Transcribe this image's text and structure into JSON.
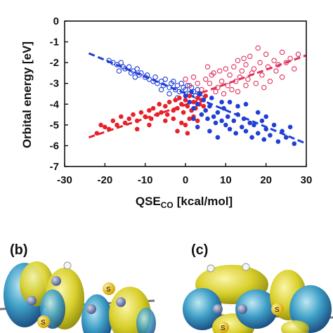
{
  "chart_data": {
    "type": "scatter",
    "xlabel": "QSE",
    "xlabel_sub": "CO",
    "xlabel_unit": "[kcal/mol]",
    "ylabel": "Orbital energy [eV]",
    "xlim": [
      -30,
      30
    ],
    "ylim": [
      -7,
      0
    ],
    "xticks": [
      -30,
      -20,
      -10,
      0,
      10,
      20,
      30
    ],
    "yticks": [
      0,
      -1,
      -2,
      -3,
      -4,
      -5,
      -6,
      -7
    ],
    "grid": false,
    "legend": "none",
    "series": [
      {
        "marker": "open-circle",
        "color": "#1f3fd6",
        "points": [
          [
            -19,
            -1.9
          ],
          [
            -18,
            -2.0
          ],
          [
            -17,
            -2.1
          ],
          [
            -16,
            -2.0
          ],
          [
            -15.5,
            -2.2
          ],
          [
            -15,
            -2.3
          ],
          [
            -14,
            -2.2
          ],
          [
            -13.5,
            -2.5
          ],
          [
            -13,
            -2.4
          ],
          [
            -12,
            -2.3
          ],
          [
            -11.5,
            -2.6
          ],
          [
            -11,
            -2.5
          ],
          [
            -10,
            -2.7
          ],
          [
            -9.5,
            -2.6
          ],
          [
            -9,
            -2.8
          ],
          [
            -8,
            -2.9
          ],
          [
            -7.5,
            -2.7
          ],
          [
            -7,
            -3.0
          ],
          [
            -6,
            -2.9
          ],
          [
            -5.5,
            -3.1
          ],
          [
            -5,
            -2.8
          ],
          [
            -4,
            -3.2
          ],
          [
            -3.5,
            -3.0
          ],
          [
            -3,
            -2.9
          ],
          [
            -2.5,
            -3.3
          ],
          [
            -2,
            -3.1
          ],
          [
            -1.5,
            -3.4
          ],
          [
            -1,
            -3.0
          ],
          [
            -0.5,
            -3.2
          ],
          [
            0,
            -3.3
          ],
          [
            0.5,
            -3.1
          ],
          [
            1,
            -3.5
          ],
          [
            1.5,
            -3.2
          ],
          [
            2,
            -3.4
          ],
          [
            2.5,
            -3.6
          ],
          [
            3,
            -3.3
          ],
          [
            3.5,
            -3.5
          ],
          [
            4,
            -3.7
          ],
          [
            -2,
            -3.7
          ],
          [
            -4,
            -3.5
          ],
          [
            -6,
            -3.3
          ],
          [
            -16.5,
            -2.4
          ],
          [
            -12.5,
            -2.7
          ]
        ],
        "trend": [
          [
            -24,
            -1.55
          ],
          [
            30,
            -5.9
          ]
        ]
      },
      {
        "marker": "open-circle",
        "color": "#e0305a",
        "points": [
          [
            4,
            -3.3
          ],
          [
            5,
            -2.8
          ],
          [
            6,
            -3.0
          ],
          [
            7,
            -2.5
          ],
          [
            8,
            -3.2
          ],
          [
            8.5,
            -2.4
          ],
          [
            9,
            -2.9
          ],
          [
            10,
            -2.3
          ],
          [
            10.5,
            -3.1
          ],
          [
            11,
            -2.6
          ],
          [
            12,
            -2.2
          ],
          [
            12.5,
            -2.9
          ],
          [
            13,
            -1.9
          ],
          [
            13.5,
            -2.7
          ],
          [
            14,
            -2.4
          ],
          [
            14.5,
            -1.8
          ],
          [
            15,
            -2.1
          ],
          [
            15.5,
            -2.8
          ],
          [
            16,
            -1.7
          ],
          [
            16.5,
            -2.5
          ],
          [
            17,
            -2.3
          ],
          [
            17.5,
            -3.0
          ],
          [
            18,
            -1.3
          ],
          [
            18.5,
            -2.0
          ],
          [
            19,
            -2.6
          ],
          [
            20,
            -1.6
          ],
          [
            20.5,
            -2.2
          ],
          [
            21,
            -2.9
          ],
          [
            22,
            -1.9
          ],
          [
            22.5,
            -2.4
          ],
          [
            23,
            -2.1
          ],
          [
            24,
            -1.5
          ],
          [
            25,
            -2.0
          ],
          [
            26,
            -1.8
          ],
          [
            27,
            -2.3
          ],
          [
            28,
            -1.6
          ],
          [
            6.5,
            -2.6
          ],
          [
            7.5,
            -3.4
          ],
          [
            9.5,
            -3.5
          ],
          [
            11.5,
            -3.3
          ],
          [
            3,
            -3.0
          ],
          [
            2,
            -2.7
          ],
          [
            1,
            -3.1
          ],
          [
            0,
            -2.8
          ],
          [
            5.5,
            -2.2
          ],
          [
            13,
            -3.4
          ],
          [
            15,
            -3.1
          ],
          [
            19.5,
            -3.2
          ],
          [
            24,
            -2.7
          ]
        ],
        "trend": [
          [
            4,
            -3.45
          ],
          [
            30,
            -1.65
          ]
        ]
      },
      {
        "marker": "filled-circle",
        "color": "#e8202a",
        "points": [
          [
            -22,
            -5.4
          ],
          [
            -21,
            -5.0
          ],
          [
            -20,
            -5.1
          ],
          [
            -19,
            -5.2
          ],
          [
            -18,
            -4.8
          ],
          [
            -17,
            -5.0
          ],
          [
            -16,
            -4.6
          ],
          [
            -15,
            -4.9
          ],
          [
            -14,
            -4.7
          ],
          [
            -13,
            -4.5
          ],
          [
            -12,
            -4.8
          ],
          [
            -11,
            -4.4
          ],
          [
            -10,
            -4.6
          ],
          [
            -9,
            -4.3
          ],
          [
            -8.5,
            -4.7
          ],
          [
            -8,
            -4.2
          ],
          [
            -7,
            -4.5
          ],
          [
            -6.5,
            -4.0
          ],
          [
            -6,
            -4.4
          ],
          [
            -5,
            -4.1
          ],
          [
            -4.5,
            -4.5
          ],
          [
            -4,
            -3.9
          ],
          [
            -3,
            -4.3
          ],
          [
            -2.5,
            -3.8
          ],
          [
            -2,
            -4.2
          ],
          [
            -1.5,
            -3.7
          ],
          [
            -1,
            -4.0
          ],
          [
            -0.5,
            -4.4
          ],
          [
            0,
            -3.8
          ],
          [
            0.5,
            -4.1
          ],
          [
            1,
            -3.6
          ],
          [
            1.5,
            -4.3
          ],
          [
            2,
            -3.9
          ],
          [
            2.5,
            -4.2
          ],
          [
            3,
            -3.7
          ],
          [
            3.5,
            -4.0
          ],
          [
            4,
            -3.8
          ],
          [
            4.5,
            -4.1
          ],
          [
            5,
            -3.6
          ],
          [
            0,
            -5.0
          ],
          [
            -1,
            -4.9
          ],
          [
            1,
            -4.7
          ],
          [
            2,
            -4.6
          ],
          [
            3,
            -4.8
          ],
          [
            -3,
            -4.7
          ],
          [
            -5,
            -4.8
          ],
          [
            -9,
            -5.0
          ],
          [
            -12,
            -5.2
          ],
          [
            0.5,
            -5.4
          ],
          [
            -2,
            -5.3
          ]
        ],
        "trend": [
          [
            -24,
            -5.6
          ],
          [
            5,
            -3.7
          ]
        ]
      },
      {
        "marker": "filled-circle",
        "color": "#1f3fd6",
        "points": [
          [
            0,
            -3.6
          ],
          [
            1,
            -3.9
          ],
          [
            2,
            -4.2
          ],
          [
            3,
            -4.0
          ],
          [
            4,
            -4.5
          ],
          [
            4.5,
            -3.8
          ],
          [
            5,
            -4.3
          ],
          [
            5.5,
            -4.7
          ],
          [
            6,
            -4.1
          ],
          [
            7,
            -4.6
          ],
          [
            7.5,
            -4.9
          ],
          [
            8,
            -4.4
          ],
          [
            9,
            -4.8
          ],
          [
            9.5,
            -4.2
          ],
          [
            10,
            -5.0
          ],
          [
            10.5,
            -4.6
          ],
          [
            11,
            -5.2
          ],
          [
            12,
            -4.8
          ],
          [
            12.5,
            -5.4
          ],
          [
            13,
            -4.5
          ],
          [
            14,
            -5.1
          ],
          [
            14.5,
            -4.7
          ],
          [
            15,
            -5.3
          ],
          [
            16,
            -4.9
          ],
          [
            16.5,
            -5.6
          ],
          [
            17,
            -5.0
          ],
          [
            18,
            -5.4
          ],
          [
            19,
            -4.8
          ],
          [
            19.5,
            -5.7
          ],
          [
            20,
            -5.2
          ],
          [
            21,
            -5.5
          ],
          [
            22,
            -5.0
          ],
          [
            23,
            -5.8
          ],
          [
            24,
            -5.3
          ],
          [
            25,
            -5.6
          ],
          [
            26,
            -5.1
          ],
          [
            27,
            -5.9
          ],
          [
            2,
            -4.7
          ],
          [
            3,
            -5.1
          ],
          [
            6,
            -5.3
          ],
          [
            8,
            -5.6
          ],
          [
            11,
            -3.9
          ],
          [
            13,
            -4.1
          ],
          [
            15,
            -4.0
          ],
          [
            18,
            -4.4
          ],
          [
            20,
            -4.6
          ],
          [
            1.5,
            -3.4
          ],
          [
            3.5,
            -3.5
          ],
          [
            6.5,
            -3.7
          ],
          [
            9,
            -3.9
          ]
        ],
        "trend": []
      }
    ]
  },
  "panels": {
    "b_label": "(b)",
    "c_label": "(c)",
    "atom_s": "S"
  }
}
